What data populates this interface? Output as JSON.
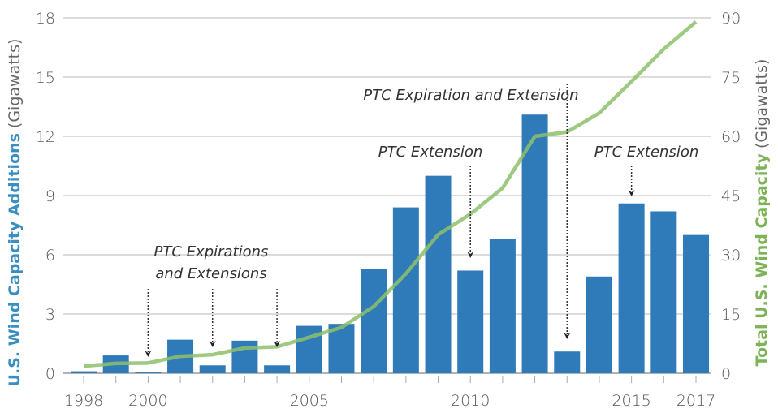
{
  "chart_data": {
    "type": "bar",
    "title": "",
    "xlabel": "",
    "ylabel_left": {
      "main": "U.S. Wind Capacity Additions",
      "unit": " (Gigawatts)"
    },
    "ylabel_right": {
      "main": "Total U.S. Wind Capacity",
      "unit": " (Gigawatts)"
    },
    "ylim_left": [
      0,
      18
    ],
    "ylim_right": [
      0,
      90
    ],
    "yticks_left": [
      "0",
      "3",
      "6",
      "9",
      "12",
      "15",
      "18"
    ],
    "yticks_right": [
      "0",
      "15",
      "30",
      "45",
      "60",
      "75",
      "90"
    ],
    "xticks": [
      "1998",
      "2000",
      "2005",
      "2010",
      "2015",
      "2017"
    ],
    "grid": true,
    "x": [
      1998,
      1999,
      2000,
      2001,
      2002,
      2003,
      2004,
      2005,
      2006,
      2007,
      2008,
      2009,
      2010,
      2011,
      2012,
      2013,
      2014,
      2015,
      2016,
      2017
    ],
    "series": [
      {
        "name": "U.S. Wind Capacity Additions",
        "type": "bar",
        "axis": "left",
        "color": "#2f7ab8",
        "values": [
          0.1,
          0.9,
          0.07,
          1.7,
          0.4,
          1.65,
          0.4,
          2.4,
          2.5,
          5.3,
          8.4,
          10.0,
          5.2,
          6.8,
          13.1,
          1.1,
          4.9,
          8.6,
          8.2,
          7.0
        ]
      },
      {
        "name": "Total U.S. Wind Capacity",
        "type": "line",
        "axis": "right",
        "color": "#8dbf6a",
        "values": [
          1.8,
          2.5,
          2.6,
          4.3,
          4.7,
          6.4,
          6.7,
          9.1,
          11.6,
          16.9,
          25.2,
          35.1,
          40.3,
          46.9,
          60.0,
          61.1,
          65.9,
          73.9,
          82.1,
          89.0
        ]
      }
    ],
    "annotations": [
      {
        "text_lines": [
          "PTC Expirations",
          "and Extensions"
        ],
        "arrows_at": [
          2000,
          2002,
          2004
        ]
      },
      {
        "text_lines": [
          "PTC Extension"
        ],
        "arrows_at": [
          2010
        ]
      },
      {
        "text_lines": [
          "PTC Expiration and Extension"
        ],
        "arrows_at": [
          2013
        ]
      },
      {
        "text_lines": [
          "PTC Extension"
        ],
        "arrows_at": [
          2015
        ]
      }
    ]
  }
}
